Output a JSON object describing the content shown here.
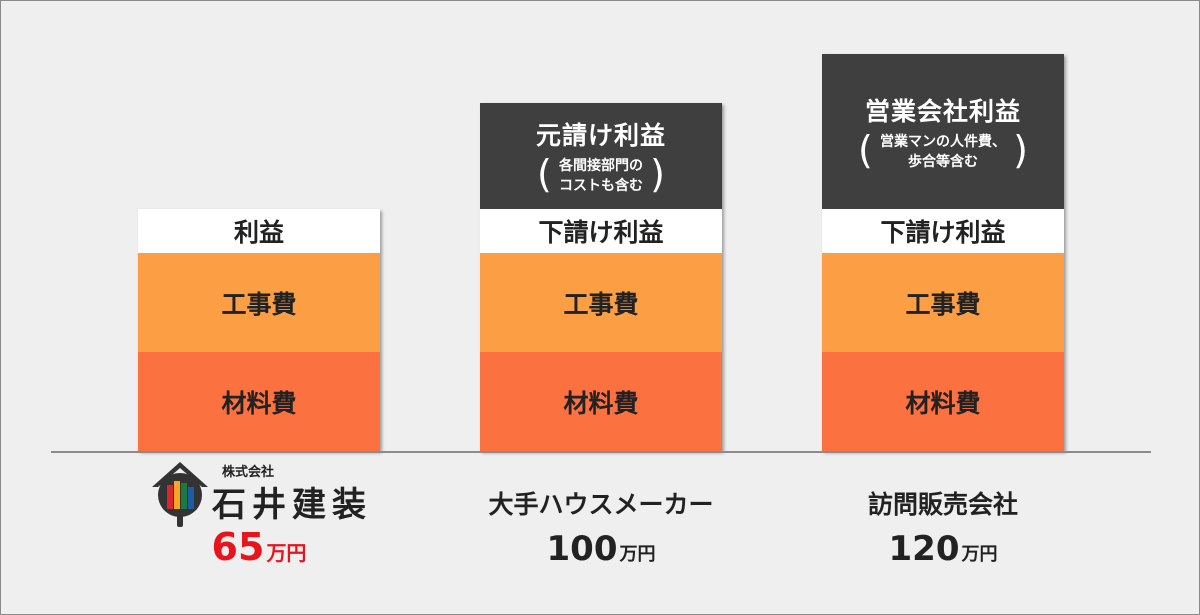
{
  "chart_data": {
    "type": "bar",
    "stacked": true,
    "categories": [
      "株式会社 石井建装",
      "大手ハウスメーカー",
      "訪問販売会社"
    ],
    "totals": [
      65,
      100,
      120
    ],
    "unit": "万円",
    "grid": false,
    "segments": [
      {
        "name": "材料費",
        "color": "#fb7240",
        "values": [
          1,
          1,
          1
        ]
      },
      {
        "name": "工事費",
        "color": "#fb9e44",
        "values": [
          1,
          1,
          1
        ]
      },
      {
        "name": "利益 / 下請け利益",
        "color": "#ffffff",
        "values": [
          0.45,
          0.45,
          0.45
        ]
      },
      {
        "name": "元請け利益 / 営業会社利益",
        "color": "#3f3f3f",
        "values": [
          0,
          1.05,
          1.55
        ]
      }
    ]
  },
  "companies": [
    {
      "name": "石井建装",
      "name_prefix": "株式会社",
      "price": "65",
      "unit": "万円",
      "segments": {
        "material": "材料費",
        "construction": "工事費",
        "profit": "利益"
      }
    },
    {
      "name": "大手ハウスメーカー",
      "price": "100",
      "unit": "万円",
      "segments": {
        "material": "材料費",
        "construction": "工事費",
        "profit": "下請け利益",
        "top_title": "元請け利益",
        "top_note_1": "各間接部門の",
        "top_note_2": "コストも含む"
      }
    },
    {
      "name": "訪問販売会社",
      "price": "120",
      "unit": "万円",
      "segments": {
        "material": "材料費",
        "construction": "工事費",
        "profit": "下請け利益",
        "top_title": "営業会社利益",
        "top_note_1": "営業マンの人件費、",
        "top_note_2": "歩合等含む"
      }
    }
  ],
  "logo": {
    "icon": "house-paint-icon",
    "colors": [
      "#d9262b",
      "#f6a623",
      "#1c7a3e",
      "#1f5aa6"
    ]
  }
}
